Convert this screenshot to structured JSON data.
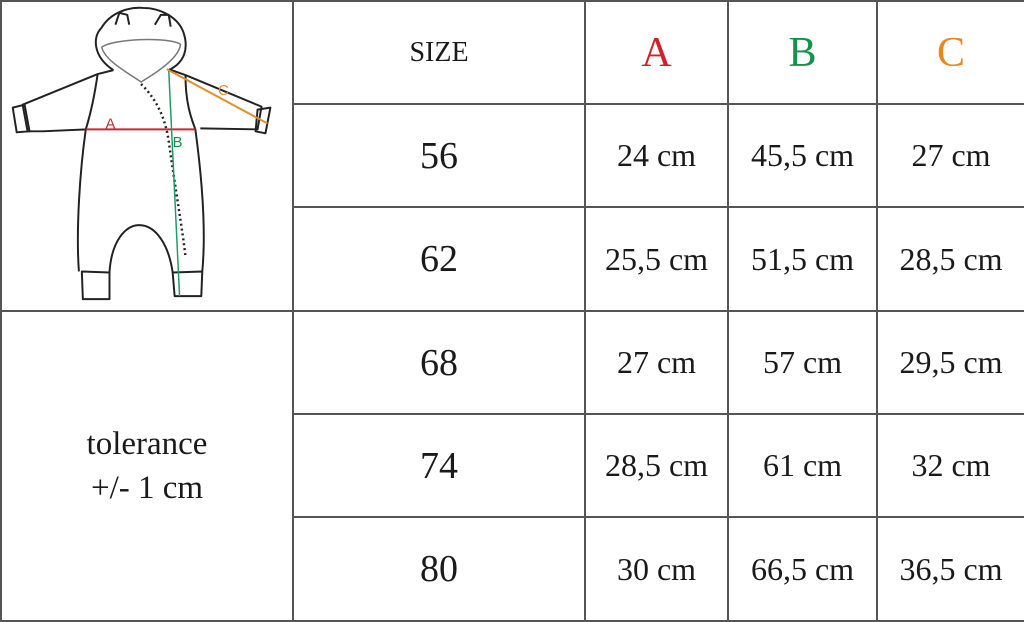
{
  "header": {
    "size_label": "SIZE",
    "columns": [
      {
        "label": "A",
        "color": "#d0202a"
      },
      {
        "label": "B",
        "color": "#14924a"
      },
      {
        "label": "C",
        "color": "#e9861d"
      }
    ]
  },
  "illustration": {
    "subject": "baby hooded romper line drawing",
    "labels": {
      "a": "A",
      "b": "B",
      "c": "C"
    }
  },
  "rows": [
    {
      "size": "56",
      "a": "24 cm",
      "b": "45,5 cm",
      "c": "27 cm"
    },
    {
      "size": "62",
      "a": "25,5 cm",
      "b": "51,5 cm",
      "c": "28,5 cm"
    },
    {
      "size": "68",
      "a": "27 cm",
      "b": "57 cm",
      "c": "29,5 cm"
    },
    {
      "size": "74",
      "a": "28,5 cm",
      "b": "61 cm",
      "c": "32 cm"
    },
    {
      "size": "80",
      "a": "30 cm",
      "b": "66,5 cm",
      "c": "36,5 cm"
    }
  ],
  "tolerance": {
    "line1": "tolerance",
    "line2": "+/- 1 cm"
  }
}
